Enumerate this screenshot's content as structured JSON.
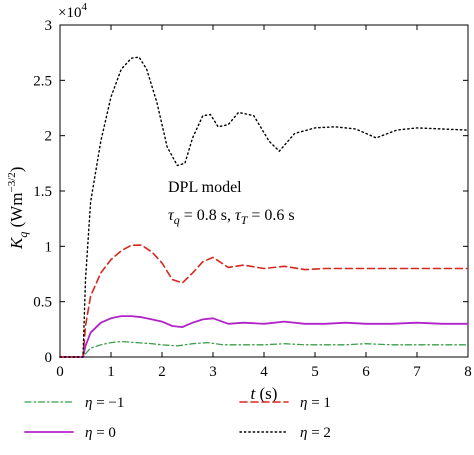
{
  "chart_data": {
    "type": "line",
    "multiplier_label": "×10",
    "multiplier_exponent": "4",
    "xlabel_var": "t",
    "xlabel_unit": " (s)",
    "ylabel_var": "K",
    "ylabel_sub": "q",
    "ylabel_unit_pre": " (Wm",
    "ylabel_unit_sup": "−3/2",
    "ylabel_unit_post": ")",
    "annotation_line1": "DPL model",
    "annotation_tq_var": "τ",
    "annotation_tq_sub": "q",
    "annotation_tq_val": " = 0.8 s, ",
    "annotation_tt_var": "τ",
    "annotation_tt_sub": "T",
    "annotation_tt_val": " = 0.6 s",
    "xlim": [
      0,
      8
    ],
    "ylim": [
      0,
      3
    ],
    "y_scale_note": "values in units of 10^4",
    "x_ticks": [
      "0",
      "1",
      "2",
      "3",
      "4",
      "5",
      "6",
      "7",
      "8"
    ],
    "y_ticks": [
      "0",
      "0.5",
      "1",
      "1.5",
      "2",
      "2.5",
      "3"
    ],
    "grid": false,
    "series": [
      {
        "name": "η = −1",
        "legend_var": "η",
        "legend_val": " = −1",
        "color": "#3aa14a",
        "dash": "dashdot",
        "x": [
          0,
          0.45,
          0.5,
          0.6,
          0.8,
          1.0,
          1.2,
          1.5,
          1.8,
          2.0,
          2.3,
          2.6,
          2.9,
          3.2,
          3.6,
          4.0,
          4.4,
          4.8,
          5.2,
          5.6,
          6.0,
          6.5,
          7.0,
          7.5,
          8.0
        ],
        "values": [
          0,
          0,
          0.03,
          0.08,
          0.11,
          0.13,
          0.14,
          0.13,
          0.12,
          0.11,
          0.1,
          0.12,
          0.13,
          0.11,
          0.11,
          0.11,
          0.12,
          0.11,
          0.11,
          0.11,
          0.12,
          0.11,
          0.11,
          0.11,
          0.11
        ]
      },
      {
        "name": "η = 0",
        "legend_var": "η",
        "legend_val": " = 0",
        "color": "#b023c8",
        "dash": "solid",
        "x": [
          0,
          0.45,
          0.5,
          0.6,
          0.8,
          1.0,
          1.2,
          1.4,
          1.6,
          1.8,
          2.0,
          2.2,
          2.4,
          2.6,
          2.8,
          3.0,
          3.3,
          3.6,
          4.0,
          4.4,
          4.8,
          5.2,
          5.6,
          6.0,
          6.5,
          7.0,
          7.5,
          8.0
        ],
        "values": [
          0,
          0,
          0.1,
          0.22,
          0.31,
          0.35,
          0.37,
          0.37,
          0.36,
          0.34,
          0.32,
          0.28,
          0.27,
          0.31,
          0.34,
          0.35,
          0.3,
          0.31,
          0.3,
          0.32,
          0.3,
          0.3,
          0.31,
          0.3,
          0.3,
          0.31,
          0.3,
          0.3
        ]
      },
      {
        "name": "η = 1",
        "legend_var": "η",
        "legend_val": " = 1",
        "color": "#d6281e",
        "dash": "dashed",
        "x": [
          0,
          0.45,
          0.5,
          0.6,
          0.8,
          1.0,
          1.2,
          1.4,
          1.6,
          1.8,
          2.0,
          2.2,
          2.4,
          2.6,
          2.8,
          3.0,
          3.3,
          3.6,
          4.0,
          4.4,
          4.8,
          5.2,
          5.6,
          6.0,
          6.5,
          7.0,
          7.5,
          8.0
        ],
        "values": [
          0,
          0,
          0.28,
          0.55,
          0.76,
          0.88,
          0.96,
          1.01,
          1.01,
          0.95,
          0.85,
          0.7,
          0.67,
          0.76,
          0.86,
          0.9,
          0.81,
          0.83,
          0.8,
          0.82,
          0.79,
          0.8,
          0.8,
          0.8,
          0.8,
          0.8,
          0.8,
          0.8
        ]
      },
      {
        "name": "η = 2",
        "legend_var": "η",
        "legend_val": " = 2",
        "color": "#000000",
        "dash": "dotted",
        "x": [
          0,
          0.45,
          0.5,
          0.6,
          0.8,
          1.0,
          1.2,
          1.4,
          1.55,
          1.7,
          1.9,
          2.1,
          2.3,
          2.45,
          2.6,
          2.8,
          2.95,
          3.1,
          3.3,
          3.5,
          3.8,
          4.1,
          4.3,
          4.6,
          5.0,
          5.4,
          5.8,
          6.2,
          6.6,
          7.0,
          7.5,
          8.0
        ],
        "values": [
          0,
          0,
          0.7,
          1.4,
          1.95,
          2.35,
          2.6,
          2.7,
          2.71,
          2.6,
          2.3,
          1.9,
          1.73,
          1.75,
          1.98,
          2.18,
          2.19,
          2.08,
          2.1,
          2.21,
          2.18,
          1.95,
          1.86,
          2.02,
          2.07,
          2.08,
          2.06,
          1.98,
          2.05,
          2.07,
          2.06,
          2.05
        ]
      }
    ],
    "legend_placement": "bottom"
  }
}
